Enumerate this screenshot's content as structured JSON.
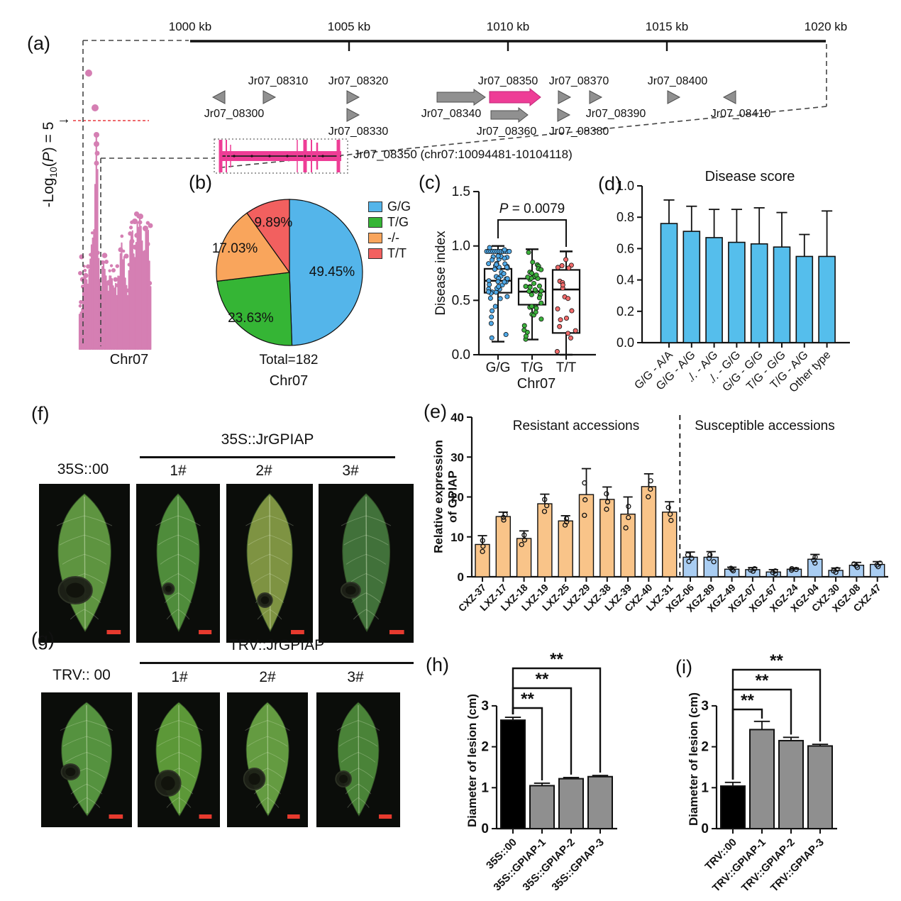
{
  "panels": {
    "a": {
      "label": "(a)",
      "ruler_ticks": [
        "1000 kb",
        "1005 kb",
        "1010 kb",
        "1015 kb",
        "1020 kb"
      ],
      "genes": [
        "Jr07_08300",
        "Jr07_08310",
        "Jr07_08320",
        "Jr07_08330",
        "Jr07_08340",
        "Jr07_08350",
        "Jr07_08360",
        "Jr07_08370",
        "Jr07_08380",
        "Jr07_08390",
        "Jr07_08400",
        "Jr07_08410"
      ],
      "ylabel": {
        "pre": "-Log",
        "sub": "10",
        "open": "(",
        "p": "P",
        "close": ") = 5"
      },
      "arrow": "→",
      "xlabel": "Chr07",
      "gene_model_label": "Jr07_08350 (chr07:10094481-10104118)"
    },
    "b": {
      "label": "(b)",
      "total": "Total=182",
      "xlabel": "Chr07"
    },
    "c": {
      "label": "(c)",
      "ylabel": "Disease index"
    },
    "d": {
      "label": "(d)",
      "title": "Disease score"
    },
    "e": {
      "label": "(e)",
      "ylabel_line1": "Relative expression",
      "ylabel_line2": "of GPIAP",
      "group1": "Resistant  accessions",
      "group2": "Susceptible accessions"
    },
    "f": {
      "label": "(f)",
      "header": "35S::JrGPIAP",
      "control": "35S::00",
      "reps": [
        "1#",
        "2#",
        "3#"
      ]
    },
    "g": {
      "label": "(g)",
      "header": "TRV::JrGPIAP",
      "control": "TRV:: 00",
      "reps": [
        "1#",
        "2#",
        "3#"
      ]
    },
    "h": {
      "label": "(h)",
      "ylabel": "Diameter of lesion (cm)"
    },
    "i": {
      "label": "(i)",
      "ylabel": "Diameter of lesion (cm)"
    }
  },
  "chart_data": [
    {
      "id": "gwas_manhattan",
      "type": "scatter",
      "xlabel": "Chr07",
      "ylabel": "-Log10(P)",
      "threshold": 5,
      "threshold_label": "-Log10(P) = 5",
      "point_color": "#D57FB3",
      "threshold_color": "#E8383F"
    },
    {
      "id": "genotype_pie",
      "type": "pie",
      "labels": [
        "G/G",
        "T/G",
        "-/-",
        "T/T"
      ],
      "values": [
        49.45,
        23.63,
        17.03,
        9.89
      ],
      "colors": [
        "#54B5EA",
        "#35B535",
        "#F9A55C",
        "#F2605F"
      ],
      "total_label": "Total=182",
      "xlabel": "Chr07",
      "legend_position": "right"
    },
    {
      "id": "disease_index_box",
      "type": "box",
      "ylabel": "Disease index",
      "xlabel": "Chr07",
      "categories": [
        "G/G",
        "T/G",
        "T/T"
      ],
      "yticks": [
        "0.0",
        "0.5",
        "1.0",
        "1.5"
      ],
      "ylim": [
        0,
        1.5
      ],
      "p_label_italic": "P",
      "p_label_rest": " = 0.0079",
      "comparison": [
        "G/G",
        "T/T"
      ],
      "boxes": [
        {
          "whisker_low": 0.12,
          "q1": 0.57,
          "median": 0.68,
          "q3": 0.79,
          "whisker_high": 1.0,
          "n_points": 65,
          "color": "#4FA9E8"
        },
        {
          "whisker_low": 0.14,
          "q1": 0.46,
          "median": 0.58,
          "q3": 0.7,
          "whisker_high": 0.97,
          "n_points": 40,
          "color": "#3CB23C"
        },
        {
          "whisker_low": 0.0,
          "q1": 0.2,
          "median": 0.6,
          "q3": 0.78,
          "whisker_high": 0.95,
          "n_points": 20,
          "color": "#F26B6B"
        }
      ]
    },
    {
      "id": "disease_score_bar",
      "type": "bar",
      "title": "Disease score",
      "categories": [
        "G/G - A/A",
        "G/G - A/G",
        "./. - A/G",
        "./. - G/G",
        "G/G - G/G",
        "T/G - G/G",
        "T/G - A/G",
        "Other type"
      ],
      "values": [
        0.76,
        0.71,
        0.67,
        0.64,
        0.63,
        0.61,
        0.55,
        0.55
      ],
      "errors": [
        0.15,
        0.16,
        0.18,
        0.21,
        0.23,
        0.22,
        0.14,
        0.29
      ],
      "yticks": [
        "0.0",
        "0.2",
        "0.4",
        "0.6",
        "0.8",
        "1.0"
      ],
      "ylim": [
        0,
        1
      ],
      "bar_color": "#55BEEC"
    },
    {
      "id": "gpiap_expression_bar",
      "type": "bar",
      "ylabel": "Relative expression of GPIAP",
      "categories": [
        "CXZ-37",
        "LXZ-17",
        "LXZ-18",
        "LXZ-19",
        "LXZ-25",
        "LXZ-29",
        "LXZ-38",
        "LXZ-39",
        "CXZ-40",
        "LXZ-31",
        "XGZ-06",
        "XGZ-89",
        "XGZ-49",
        "XGZ-07",
        "XGZ-67",
        "XGZ-24",
        "XGZ-04",
        "CXZ-30",
        "XGZ-08",
        "CXZ-47"
      ],
      "values": [
        8.1,
        15.1,
        9.6,
        18.3,
        14.0,
        20.6,
        19.4,
        15.7,
        22.6,
        16.2,
        4.9,
        4.9,
        1.9,
        1.8,
        1.2,
        1.9,
        4.4,
        1.6,
        2.9,
        3.1
      ],
      "errors": [
        2.2,
        1.1,
        1.9,
        2.4,
        1.3,
        6.5,
        3.1,
        4.3,
        3.2,
        2.6,
        1.3,
        1.4,
        0.5,
        0.5,
        0.6,
        0.3,
        1.2,
        0.6,
        0.7,
        0.7
      ],
      "group_split": 10,
      "group_labels": [
        "Resistant  accessions",
        "Susceptible accessions"
      ],
      "group_colors": [
        "#F9C489",
        "#A9CDF2"
      ],
      "yticks": [
        "0",
        "10",
        "20",
        "30",
        "40"
      ],
      "ylim": [
        0,
        40
      ]
    },
    {
      "id": "lesion_35s_bar",
      "type": "bar",
      "ylabel": "Diameter of lesion (cm)",
      "categories": [
        "35S::00",
        "35S::GPIAP-1",
        "35S::GPIAP-2",
        "35S::GPIAP-3"
      ],
      "values": [
        2.65,
        1.05,
        1.22,
        1.27
      ],
      "errors": [
        0.07,
        0.06,
        0.03,
        0.03
      ],
      "colors": [
        "#000000",
        "#8F8F8F",
        "#8F8F8F",
        "#8F8F8F"
      ],
      "yticks": [
        "0",
        "1",
        "2",
        "3"
      ],
      "ylim": [
        0,
        3
      ],
      "significance": [
        {
          "from": 0,
          "to": 1,
          "label": "**"
        },
        {
          "from": 0,
          "to": 2,
          "label": "**"
        },
        {
          "from": 0,
          "to": 3,
          "label": "**"
        }
      ]
    },
    {
      "id": "lesion_trv_bar",
      "type": "bar",
      "ylabel": "Diameter of lesion (cm)",
      "categories": [
        "TRV::00",
        "TRV::GPIAP-1",
        "TRV::GPIAP-2",
        "TRV::GPIAP-3"
      ],
      "values": [
        1.04,
        2.42,
        2.15,
        2.02
      ],
      "errors": [
        0.09,
        0.2,
        0.08,
        0.04
      ],
      "colors": [
        "#000000",
        "#8F8F8F",
        "#8F8F8F",
        "#8F8F8F"
      ],
      "yticks": [
        "0",
        "1",
        "2",
        "3"
      ],
      "ylim": [
        0,
        3
      ],
      "significance": [
        {
          "from": 0,
          "to": 1,
          "label": "**"
        },
        {
          "from": 0,
          "to": 2,
          "label": "**"
        },
        {
          "from": 0,
          "to": 3,
          "label": "**"
        }
      ]
    }
  ]
}
